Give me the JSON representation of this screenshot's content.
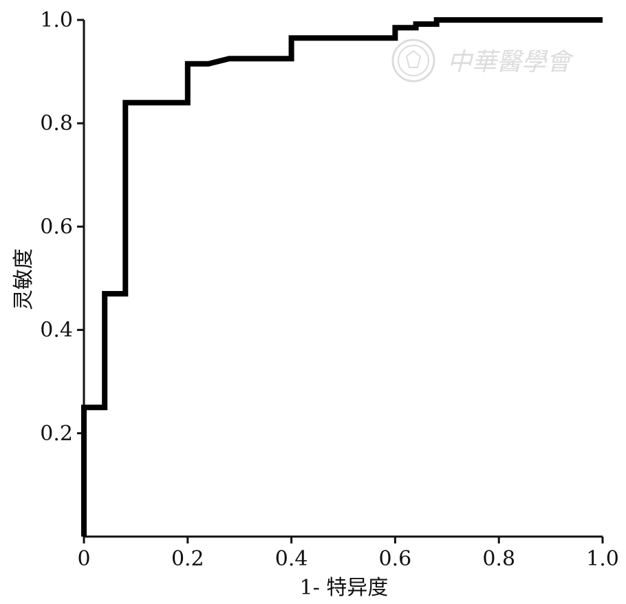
{
  "chart_data": {
    "type": "line",
    "title": "",
    "xlabel": "1- 特异度",
    "ylabel": "灵敏度",
    "xlim": [
      0,
      1.0
    ],
    "ylim": [
      0,
      1.0
    ],
    "x_ticks": [
      "0",
      "0.2",
      "0.4",
      "0.6",
      "0.8",
      "1.0"
    ],
    "y_ticks": [
      "0.2",
      "0.4",
      "0.6",
      "0.8",
      "1.0"
    ],
    "grid": false,
    "legend": "none",
    "line_color": "#000000",
    "series": [
      {
        "step": true,
        "x": [
          0.0,
          0.0,
          0.04,
          0.04,
          0.08,
          0.08,
          0.2,
          0.2,
          0.24,
          0.28,
          0.4,
          0.4,
          0.6,
          0.6,
          0.64,
          0.64,
          0.68,
          0.68,
          1.0
        ],
        "y": [
          0.0,
          0.25,
          0.25,
          0.47,
          0.47,
          0.84,
          0.84,
          0.915,
          0.915,
          0.925,
          0.925,
          0.965,
          0.965,
          0.985,
          0.985,
          0.992,
          0.992,
          1.0,
          1.0
        ]
      }
    ]
  },
  "watermark": {
    "text": "中華醫學會",
    "color": "#d9d9d9"
  }
}
